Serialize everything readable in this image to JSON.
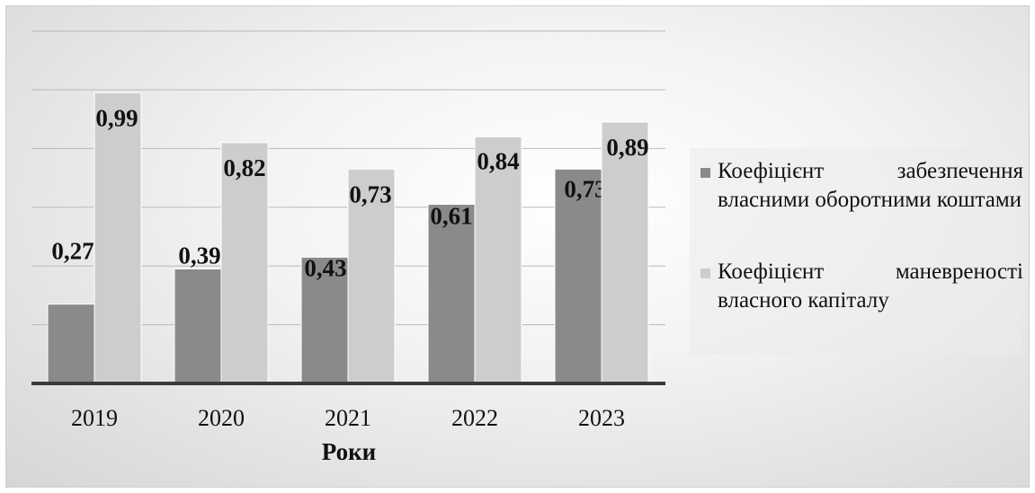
{
  "chart_data": {
    "type": "bar",
    "categories": [
      "2019",
      "2020",
      "2021",
      "2022",
      "2023"
    ],
    "series": [
      {
        "name": "Коефіцієнт забезпечення власними оборотними коштами",
        "values": [
          0.27,
          0.39,
          0.43,
          0.61,
          0.73
        ],
        "labels": [
          "0,27",
          "0,39",
          "0,43",
          "0,61",
          "0,73"
        ],
        "color": "#8a8a8a"
      },
      {
        "name": "Коефіцієнт маневреності власного капіталу",
        "values": [
          0.99,
          0.82,
          0.73,
          0.84,
          0.89
        ],
        "labels": [
          "0,99",
          "0,82",
          "0,73",
          "0,84",
          "0,89"
        ],
        "color": "#cdcdcd"
      }
    ],
    "xlabel": "Роки",
    "ylabel": "",
    "ylim": [
      0,
      1.2
    ],
    "grid": true,
    "legend": "right"
  }
}
